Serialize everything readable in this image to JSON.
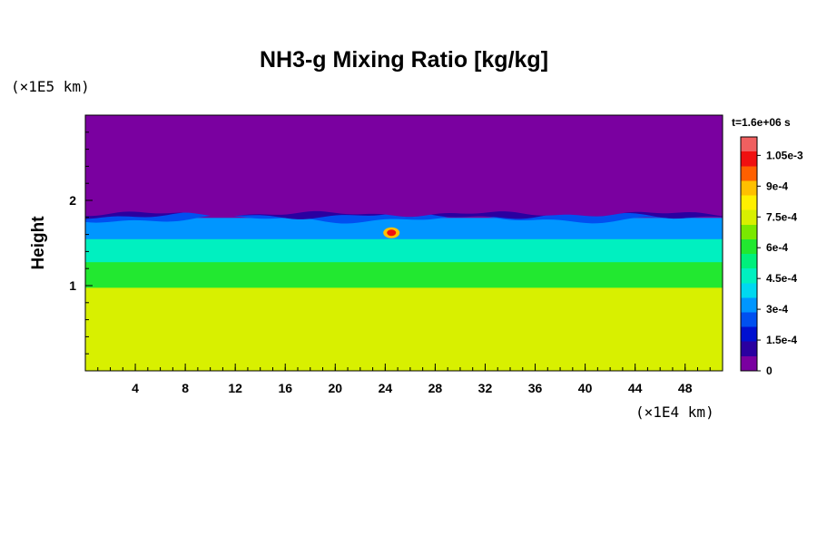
{
  "chart_data": {
    "type": "heatmap",
    "title": "NH3-g Mixing Ratio [kg/kg]",
    "xlabel": "",
    "ylabel": "Height",
    "x_unit_label": "(×1E4 km)",
    "y_unit_label": "(×1E5 km)",
    "time_label": "t=1.6e+06 s",
    "xlim": [
      0,
      51
    ],
    "ylim": [
      0,
      3
    ],
    "x_ticks": [
      "4",
      "8",
      "12",
      "16",
      "20",
      "24",
      "28",
      "32",
      "36",
      "40",
      "44",
      "48"
    ],
    "x_tick_values": [
      4,
      8,
      12,
      16,
      20,
      24,
      28,
      32,
      36,
      40,
      44,
      48
    ],
    "y_ticks": [
      "1",
      "2"
    ],
    "y_tick_values": [
      1,
      2
    ],
    "colorbar": {
      "min": 0,
      "max": 0.00114,
      "labels": [
        "0",
        "1.5e-4",
        "3e-4",
        "4.5e-4",
        "6e-4",
        "7.5e-4",
        "9e-4",
        "1.05e-3"
      ],
      "label_values": [
        0,
        0.00015,
        0.0003,
        0.00045,
        0.0006,
        0.00075,
        0.0009,
        0.00105
      ],
      "colors": [
        "#7a00a0",
        "#2a00a0",
        "#0010d0",
        "#0050f0",
        "#0096ff",
        "#00d8f0",
        "#00f0c0",
        "#00f07c",
        "#22e830",
        "#7ae800",
        "#d8f000",
        "#fff000",
        "#ffc000",
        "#ff6000",
        "#f01010",
        "#f06060"
      ]
    },
    "layers": [
      {
        "name": "",
        "height_range": [
          0,
          0.98
        ],
        "value": 0.00074
      },
      {
        "name": "",
        "height_range": [
          0.98,
          1.28
        ],
        "value": 0.00064
      },
      {
        "name": "",
        "height_range": [
          1.28,
          1.55
        ],
        "value": 0.00045
      },
      {
        "name": "",
        "height_range": [
          1.55,
          1.8
        ],
        "value": 0.00032
      },
      {
        "name": "",
        "height_range": [
          1.8,
          3.0
        ],
        "value": 0.0
      }
    ],
    "peak": {
      "x": 24.5,
      "y": 1.62,
      "value": 0.00105
    }
  }
}
